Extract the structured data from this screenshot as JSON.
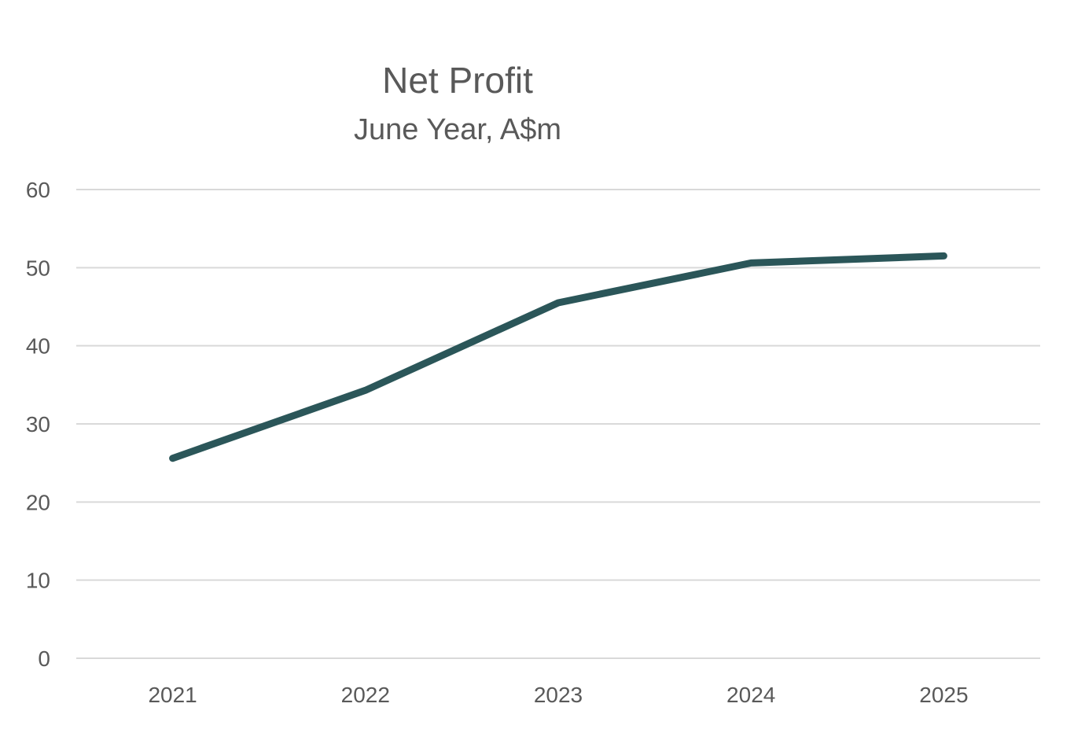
{
  "chart_data": {
    "type": "line",
    "title": "Net Profit",
    "subtitle": "June Year, A$m",
    "xlabel": "",
    "ylabel": "",
    "categories": [
      "2021",
      "2022",
      "2023",
      "2024",
      "2025"
    ],
    "series": [
      {
        "values": [
          25.6,
          34.3,
          45.5,
          50.6,
          51.5
        ],
        "color": "#2b5659"
      }
    ],
    "ylim": [
      0,
      60
    ],
    "yticks": [
      "0",
      "10",
      "20",
      "30",
      "40",
      "50",
      "60"
    ],
    "grid": true,
    "legend": "none",
    "colors": {
      "gridline": "#d9d9d9",
      "text": "#595959"
    }
  }
}
